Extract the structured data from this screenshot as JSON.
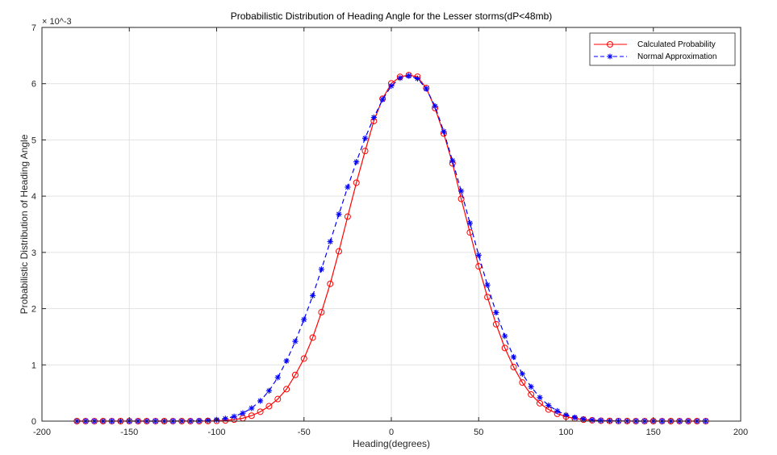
{
  "chart_data": {
    "type": "line",
    "title": "Probabilistic Distribution of Heading Angle for the Lesser storms(dP<48mb)",
    "xlabel": "Heading(degrees)",
    "ylabel": "Probabilistic Distribution of Heading Angle",
    "xlim": [
      -200,
      200
    ],
    "ylim": [
      0,
      0.007
    ],
    "xticks": [
      -200,
      -150,
      -100,
      -50,
      0,
      50,
      100,
      150,
      200
    ],
    "xtick_labels": [
      "-200",
      "-150",
      "-100",
      "-50",
      "0",
      "50",
      "100",
      "150",
      "200"
    ],
    "yticks": [
      0,
      0.001,
      0.002,
      0.003,
      0.004,
      0.005,
      0.006,
      0.007
    ],
    "ytick_labels": [
      "0",
      "1",
      "2",
      "3",
      "4",
      "5",
      "6",
      "7"
    ],
    "y_exponent_label": "× 10^-3",
    "grid": true,
    "legend_position": "top-right",
    "x": [
      -180,
      -175,
      -170,
      -165,
      -160,
      -155,
      -150,
      -145,
      -140,
      -135,
      -130,
      -125,
      -120,
      -115,
      -110,
      -105,
      -100,
      -95,
      -90,
      -85,
      -80,
      -75,
      -70,
      -65,
      -60,
      -55,
      -50,
      -45,
      -40,
      -35,
      -30,
      -25,
      -20,
      -15,
      -10,
      -5,
      0,
      5,
      10,
      15,
      20,
      25,
      30,
      35,
      40,
      45,
      50,
      55,
      60,
      65,
      70,
      75,
      80,
      85,
      90,
      95,
      100,
      105,
      110,
      115,
      120,
      125,
      130,
      135,
      140,
      145,
      150,
      155,
      160,
      165,
      170,
      175,
      180
    ],
    "series": [
      {
        "name": "Calculated Probability",
        "color": "#ff0000",
        "line_style": "solid",
        "marker": "circle",
        "values": [
          0.0,
          0.0,
          0.0,
          0.0,
          0.0,
          0.0,
          0.0,
          0.0,
          0.0,
          0.0,
          0.0,
          0.0,
          0.0,
          0.0,
          0.0,
          2e-06,
          5e-06,
          1.2e-05,
          2.6e-05,
          5.2e-05,
          9.7e-05,
          0.000167,
          0.000265,
          0.000392,
          0.000568,
          0.000821,
          0.001112,
          0.001485,
          0.001936,
          0.002441,
          0.003019,
          0.003636,
          0.004239,
          0.004803,
          0.005336,
          0.005733,
          0.006005,
          0.006121,
          0.006152,
          0.006123,
          0.005922,
          0.005565,
          0.005113,
          0.004583,
          0.003952,
          0.003355,
          0.002752,
          0.002206,
          0.001723,
          0.0013,
          0.000962,
          0.000686,
          0.000474,
          0.000318,
          0.000207,
          0.000131,
          8e-05,
          4.7e-05,
          2.7e-05,
          1.5e-05,
          8e-06,
          4e-06,
          2e-06,
          1e-06,
          0.0,
          0.0,
          0.0,
          0.0,
          0.0,
          0.0,
          0.0,
          0.0,
          0.0
        ]
      },
      {
        "name": "Normal Approximation",
        "color": "#0000ff",
        "line_style": "dashed",
        "marker": "asterisk",
        "values": [
          0.0,
          0.0,
          0.0,
          0.0,
          0.0,
          0.0,
          0.0,
          0.0,
          0.0,
          0.0,
          0.0,
          0.0,
          1e-06,
          2e-06,
          5e-06,
          1.2e-05,
          2.4e-05,
          4.5e-05,
          8.2e-05,
          0.000141,
          0.00023,
          0.00036,
          0.00054,
          0.000776,
          0.00107,
          0.001418,
          0.001806,
          0.00223,
          0.0027,
          0.00319,
          0.00368,
          0.00416,
          0.00461,
          0.00503,
          0.0054,
          0.00572,
          0.00596,
          0.0061,
          0.00614,
          0.00609,
          0.00591,
          0.0056,
          0.00515,
          0.00463,
          0.00409,
          0.00352,
          0.00295,
          0.00242,
          0.00193,
          0.00151,
          0.00114,
          0.00084,
          0.00061,
          0.00042,
          0.00028,
          0.00018,
          0.00011,
          6.5e-05,
          3.7e-05,
          2e-05,
          1e-05,
          5e-06,
          2e-06,
          1e-06,
          0.0,
          0.0,
          0.0,
          0.0,
          0.0,
          0.0,
          0.0,
          0.0,
          0.0
        ]
      }
    ]
  }
}
